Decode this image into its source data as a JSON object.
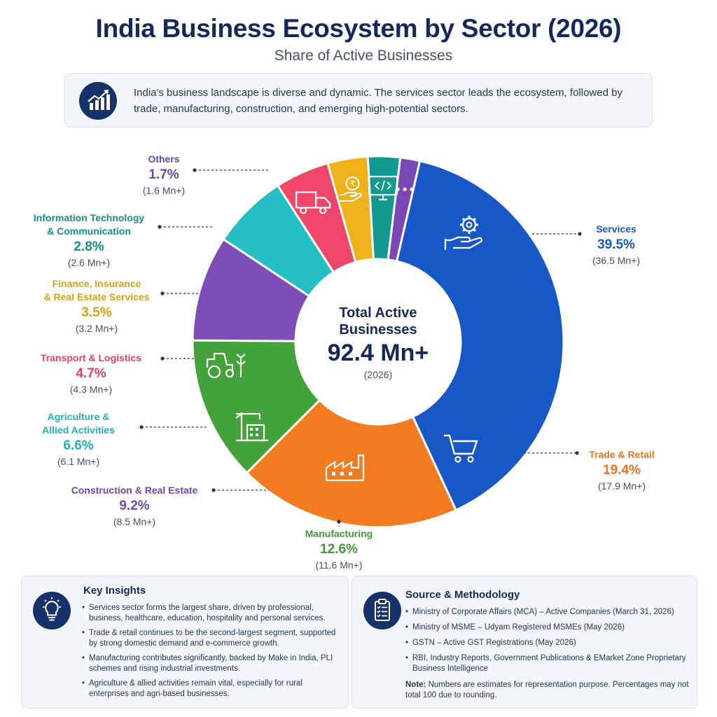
{
  "chart_data": {
    "type": "pie",
    "title": "India Business Ecosystem by Sector (2026)",
    "subtitle": "Share of Active Businesses",
    "center": {
      "line1": "Total Active",
      "line2": "Businesses",
      "value": "92.4 Mn+",
      "year": "(2026)"
    },
    "slices": [
      {
        "label": "Services",
        "value": 39.5,
        "pct_text": "39.5%",
        "count": "(36.5 Mn+)",
        "color": "#1857c6",
        "label_color": "#1857c6",
        "icon": "gear-hand-icon"
      },
      {
        "label": "Trade & Retail",
        "value": 19.4,
        "pct_text": "19.4%",
        "count": "(17.9 Mn+)",
        "color": "#f47c20",
        "label_color": "#ef7320",
        "icon": "shopping-cart-icon"
      },
      {
        "label": "Manufacturing",
        "value": 12.6,
        "pct_text": "12.6%",
        "count": "(11.6 Mn+)",
        "color": "#43a33a",
        "label_color": "#3f9a35",
        "icon": "factory-icon"
      },
      {
        "label": "Construction & Real Estate",
        "value": 9.2,
        "pct_text": "9.2%",
        "count": "(8.5 Mn+)",
        "color": "#7d4fb6",
        "label_color": "#7046ad",
        "icon": "crane-building-icon"
      },
      {
        "label": "Agriculture & Allied Activities",
        "value": 6.6,
        "pct_text": "6.6%",
        "count": "(6.1 Mn+)",
        "color": "#24bfc6",
        "label_color": "#1eb3b8",
        "icon": "tractor-icon"
      },
      {
        "label": "Transport & Logistics",
        "value": 4.7,
        "pct_text": "4.7%",
        "count": "(4.3 Mn+)",
        "color": "#f0466a",
        "label_color": "#ec3f62",
        "icon": "truck-icon"
      },
      {
        "label": "Finance, Insurance & Real Estate Services",
        "value": 3.5,
        "pct_text": "3.5%",
        "count": "(3.2 Mn+)",
        "color": "#efb21a",
        "label_color": "#d9a012",
        "icon": "rupee-hand-icon"
      },
      {
        "label": "Information Technology & Communication",
        "value": 2.8,
        "pct_text": "2.8%",
        "count": "(2.6 Mn+)",
        "color": "#139a8e",
        "label_color": "#138f83",
        "icon": "monitor-code-icon"
      },
      {
        "label": "Others",
        "value": 1.7,
        "pct_text": "1.7%",
        "count": "(1.6 Mn+)",
        "color": "#7948b4",
        "label_color": "#6d44a8",
        "icon": "more-dots-icon"
      }
    ]
  },
  "intro": {
    "text": "India's business landscape is diverse and dynamic. The services sector leads the ecosystem, followed by trade, manufacturing, construction, and emerging high-potential sectors.",
    "icon": "growth-chart-icon"
  },
  "insights": {
    "title": "Key Insights",
    "icon": "lightbulb-icon",
    "items": [
      "Services sector forms the largest share, driven by professional, business, healthcare, education, hospitality and personal services.",
      "Trade & retail continues to be the second-largest segment, supported by strong domestic demand and e-commerce growth.",
      "Manufacturing contributes significantly, backed by Make in India, PLI schemes and rising industrial investments.",
      "Agriculture & allied activities remain vital, especially for rural enterprises and agri-based businesses."
    ]
  },
  "source": {
    "title": "Source & Methodology",
    "icon": "clipboard-icon",
    "items": [
      "Ministry of Corporate Affairs (MCA) – Active Companies (March 31, 2026)",
      "Ministry of MSME – Udyam Registered MSMEs (May 2026)",
      "GSTN – Active GST Registrations (May 2026)",
      "RBI, Industry Reports, Government Publications & EMarket Zone Proprietary Business Intelligence"
    ],
    "note_label": "Note:",
    "note_text": " Numbers are estimates for representation purpose. Percentages may not total 100 due to rounding."
  },
  "colors": {
    "navy": "#14295a",
    "panel_bg": "#f2f5fa"
  }
}
